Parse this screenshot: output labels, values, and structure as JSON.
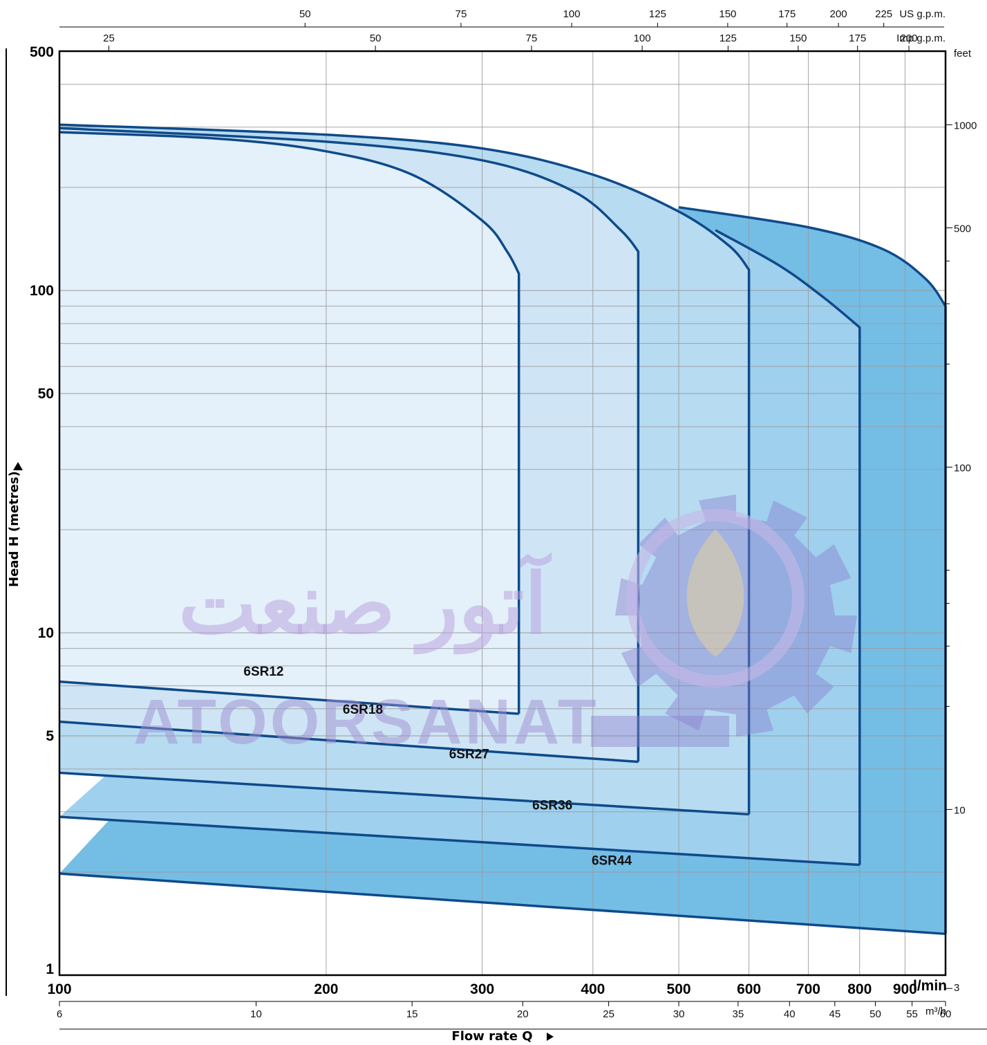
{
  "chart_data": {
    "type": "area",
    "title": "",
    "xlabel": "Flow rate  Q",
    "ylabel": "Head H  (metres)",
    "x_unit": "l/min",
    "y_unit": "",
    "x_scale": "log",
    "y_scale": "log",
    "xlim": [
      100,
      1000
    ],
    "ylim": [
      1,
      500
    ],
    "grid": true,
    "x_ticks": [
      {
        "value": 100,
        "label": "100"
      },
      {
        "value": 200,
        "label": "200"
      },
      {
        "value": 300,
        "label": "300"
      },
      {
        "value": 400,
        "label": "400"
      },
      {
        "value": 500,
        "label": "500"
      },
      {
        "value": 600,
        "label": "600"
      },
      {
        "value": 700,
        "label": "700"
      },
      {
        "value": 800,
        "label": "800"
      },
      {
        "value": 900,
        "label": "900"
      }
    ],
    "x_unit_label": "l/min",
    "y_ticks": [
      {
        "value": 1,
        "label": "1"
      },
      {
        "value": 5,
        "label": "5"
      },
      {
        "value": 10,
        "label": "10"
      },
      {
        "value": 50,
        "label": "50"
      },
      {
        "value": 100,
        "label": "100"
      },
      {
        "value": 500,
        "label": "500"
      }
    ],
    "secondary_axes": {
      "m3h": {
        "unit": "m³/h",
        "ticks": [
          {
            "value": 100,
            "label": "6"
          },
          {
            "value": 166.7,
            "label": "10"
          },
          {
            "value": 250,
            "label": "15"
          },
          {
            "value": 333.3,
            "label": "20"
          },
          {
            "value": 416.7,
            "label": "25"
          },
          {
            "value": 500,
            "label": "30"
          },
          {
            "value": 583.3,
            "label": "35"
          },
          {
            "value": 666.7,
            "label": "40"
          },
          {
            "value": 750,
            "label": "45"
          },
          {
            "value": 833.3,
            "label": "50"
          },
          {
            "value": 916.7,
            "label": "55"
          },
          {
            "value": 1000,
            "label": "60"
          }
        ]
      },
      "us_gpm": {
        "unit": "US g.p.m.",
        "ticks": [
          {
            "value": 189.3,
            "label": "50"
          },
          {
            "value": 283.9,
            "label": "75"
          },
          {
            "value": 378.5,
            "label": "100"
          },
          {
            "value": 473.2,
            "label": "125"
          },
          {
            "value": 567.8,
            "label": "150"
          },
          {
            "value": 662.4,
            "label": "175"
          },
          {
            "value": 757.1,
            "label": "200"
          },
          {
            "value": 851.7,
            "label": "225"
          }
        ]
      },
      "imp_gpm": {
        "unit": "Imp g.p.m.",
        "ticks": [
          {
            "value": 113.7,
            "label": "25"
          },
          {
            "value": 227.3,
            "label": "50"
          },
          {
            "value": 341,
            "label": "75"
          },
          {
            "value": 454.6,
            "label": "100"
          },
          {
            "value": 568.3,
            "label": "125"
          },
          {
            "value": 681.9,
            "label": "150"
          },
          {
            "value": 795.6,
            "label": "175"
          },
          {
            "value": 909.2,
            "label": "200"
          }
        ]
      },
      "feet": {
        "unit": "feet",
        "ticks": [
          {
            "value": 0.9144,
            "label": "3"
          },
          {
            "value": 3.048,
            "label": "10"
          },
          {
            "value": 30.48,
            "label": "100"
          },
          {
            "value": 152.4,
            "label": "500"
          },
          {
            "value": 304.8,
            "label": "1000"
          }
        ]
      }
    },
    "series": [
      {
        "name": "6SR12",
        "color": "#e4f1fa",
        "label_at": [
          170,
          7.5
        ],
        "upper": [
          [
            100,
            290
          ],
          [
            150,
            278
          ],
          [
            200,
            255
          ],
          [
            250,
            218
          ],
          [
            300,
            160
          ],
          [
            320,
            130
          ],
          [
            330,
            112
          ]
        ],
        "lower": [
          [
            100,
            7.2
          ],
          [
            330,
            5.8
          ]
        ]
      },
      {
        "name": "6SR18",
        "color": "#cfe5f5",
        "label_at": [
          220,
          5.8
        ],
        "upper": [
          [
            100,
            298
          ],
          [
            200,
            272
          ],
          [
            300,
            240
          ],
          [
            380,
            195
          ],
          [
            430,
            150
          ],
          [
            450,
            130
          ]
        ],
        "lower": [
          [
            100,
            5.5
          ],
          [
            450,
            4.2
          ]
        ]
      },
      {
        "name": "6SR27",
        "color": "#b7dbf1",
        "label_at": [
          290,
          4.3
        ],
        "upper": [
          [
            100,
            305
          ],
          [
            200,
            285
          ],
          [
            300,
            260
          ],
          [
            400,
            218
          ],
          [
            500,
            170
          ],
          [
            570,
            135
          ],
          [
            600,
            115
          ]
        ],
        "lower": [
          [
            100,
            3.9
          ],
          [
            600,
            2.95
          ]
        ]
      },
      {
        "name": "6SR36",
        "color": "#9fd0ee",
        "label_at": [
          360,
          3.05
        ],
        "upper": [
          [
            550,
            150
          ],
          [
            650,
            118
          ],
          [
            730,
            95
          ],
          [
            800,
            78
          ]
        ],
        "lower": [
          [
            100,
            2.9
          ],
          [
            800,
            2.1
          ]
        ]
      },
      {
        "name": "6SR44",
        "color": "#74bde5",
        "label_at": [
          420,
          2.1
        ],
        "upper": [
          [
            500,
            175
          ],
          [
            700,
            153
          ],
          [
            850,
            132
          ],
          [
            950,
            108
          ],
          [
            1000,
            90
          ]
        ],
        "lower": [
          [
            100,
            1.98
          ],
          [
            1000,
            1.32
          ]
        ]
      }
    ],
    "watermark": {
      "latin": "ATOORSANAT",
      "persian": "آتور صنعت"
    }
  }
}
